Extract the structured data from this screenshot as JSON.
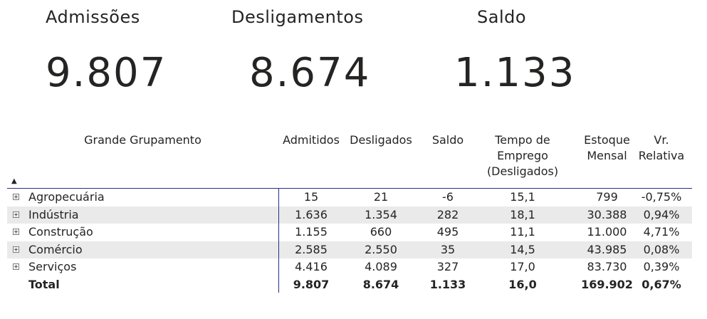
{
  "kpis": [
    {
      "label": "Admissões",
      "value": "9.807"
    },
    {
      "label": "Desligamentos",
      "value": "8.674"
    },
    {
      "label": "Saldo",
      "value": "1.133"
    }
  ],
  "table": {
    "headers": [
      "Grande Grupamento",
      "Admitidos",
      "Desligados",
      "Saldo",
      "Tempo de\nEmprego\n(Desligados)",
      "Estoque\nMensal",
      "Vr.\nRelativa"
    ],
    "rows": [
      {
        "label": "Agropecuária",
        "values": [
          "15",
          "21",
          "-6",
          "15,1",
          "799",
          "-0,75%"
        ]
      },
      {
        "label": "Indústria",
        "values": [
          "1.636",
          "1.354",
          "282",
          "18,1",
          "30.388",
          "0,94%"
        ]
      },
      {
        "label": "Construção",
        "values": [
          "1.155",
          "660",
          "495",
          "11,1",
          "11.000",
          "4,71%"
        ]
      },
      {
        "label": "Comércio",
        "values": [
          "2.585",
          "2.550",
          "35",
          "14,5",
          "43.985",
          "0,08%"
        ]
      },
      {
        "label": "Serviços",
        "values": [
          "4.416",
          "4.089",
          "327",
          "17,0",
          "83.730",
          "0,39%"
        ]
      }
    ],
    "total": {
      "label": "Total",
      "values": [
        "9.807",
        "8.674",
        "1.133",
        "16,0",
        "169.902",
        "0,67%"
      ]
    }
  },
  "colors": {
    "divider": "#2b2b8a",
    "row_shade": "#eaeaea",
    "text": "#252423"
  }
}
